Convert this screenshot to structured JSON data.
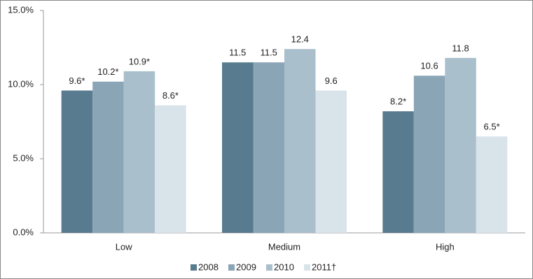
{
  "chart_data": {
    "type": "bar",
    "categories": [
      "Low",
      "Medium",
      "High"
    ],
    "series": [
      {
        "name": "2008",
        "color": "#587b8f",
        "values": [
          9.6,
          11.5,
          8.2
        ],
        "value_labels": [
          "9.6*",
          "11.5",
          "8.2*"
        ]
      },
      {
        "name": "2009",
        "color": "#8aa5b5",
        "values": [
          10.2,
          11.5,
          10.6
        ],
        "value_labels": [
          "10.2*",
          "11.5",
          "10.6"
        ]
      },
      {
        "name": "2010",
        "color": "#a9bfcc",
        "values": [
          10.9,
          12.4,
          11.8
        ],
        "value_labels": [
          "10.9*",
          "12.4",
          "11.8"
        ]
      },
      {
        "name": "2011†",
        "color": "#d9e3ea",
        "values": [
          8.6,
          9.6,
          6.5
        ],
        "value_labels": [
          "8.6*",
          "9.6",
          "6.5*"
        ]
      }
    ],
    "ylim": [
      0,
      15
    ],
    "yticks": [
      {
        "value": 0,
        "label": "0.0%"
      },
      {
        "value": 5,
        "label": "5.0%"
      },
      {
        "value": 10,
        "label": "10.0%"
      },
      {
        "value": 15,
        "label": "15.0%"
      }
    ],
    "grid": false,
    "legend": "bottom"
  }
}
